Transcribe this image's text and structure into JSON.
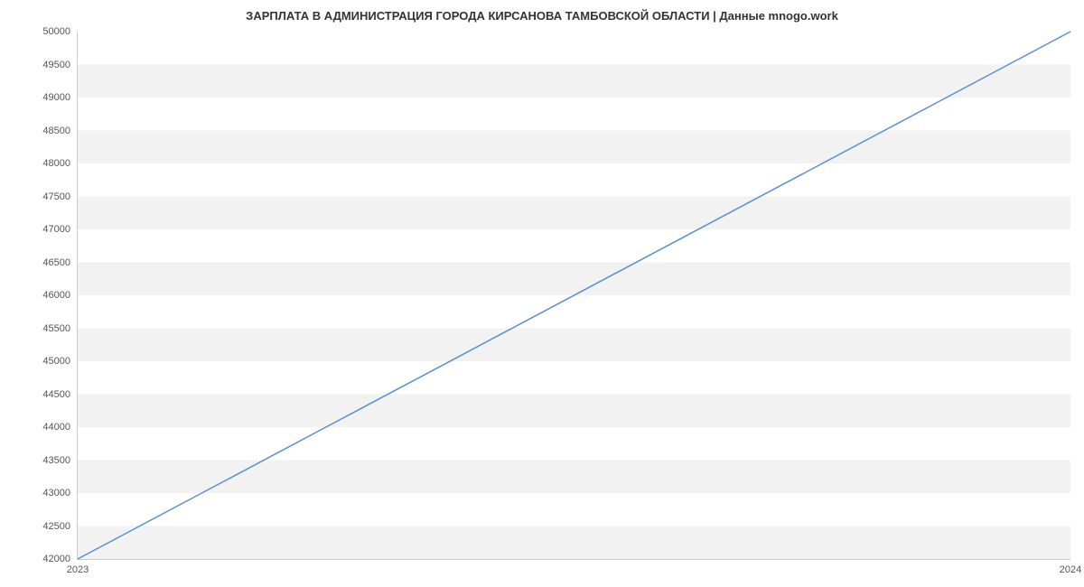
{
  "chart": {
    "type": "line",
    "title": "ЗАРПЛАТА В АДМИНИСТРАЦИЯ ГОРОДА КИРСАНОВА ТАМБОВСКОЙ ОБЛАСТИ | Данные mnogo.work",
    "title_fontsize": 13,
    "title_color": "#333333",
    "background_color": "#ffffff",
    "band_color": "#f2f2f2",
    "grid_color": "#ffffff",
    "axis_color": "#cccccc",
    "tick_label_fontsize": 11,
    "tick_label_color": "#555555",
    "line_color": "#5b8dd6",
    "line_width": 1.5,
    "ylim": [
      42000,
      50000
    ],
    "ytick_step": 500,
    "yticks": [
      42000,
      42500,
      43000,
      43500,
      44000,
      44500,
      45000,
      45500,
      46000,
      46500,
      47000,
      47500,
      48000,
      48500,
      49000,
      49500,
      50000
    ],
    "xlim": [
      2023,
      2024
    ],
    "xticks": [
      2023,
      2024
    ],
    "series": {
      "x": [
        2023,
        2024
      ],
      "y": [
        42000,
        50000
      ]
    }
  }
}
